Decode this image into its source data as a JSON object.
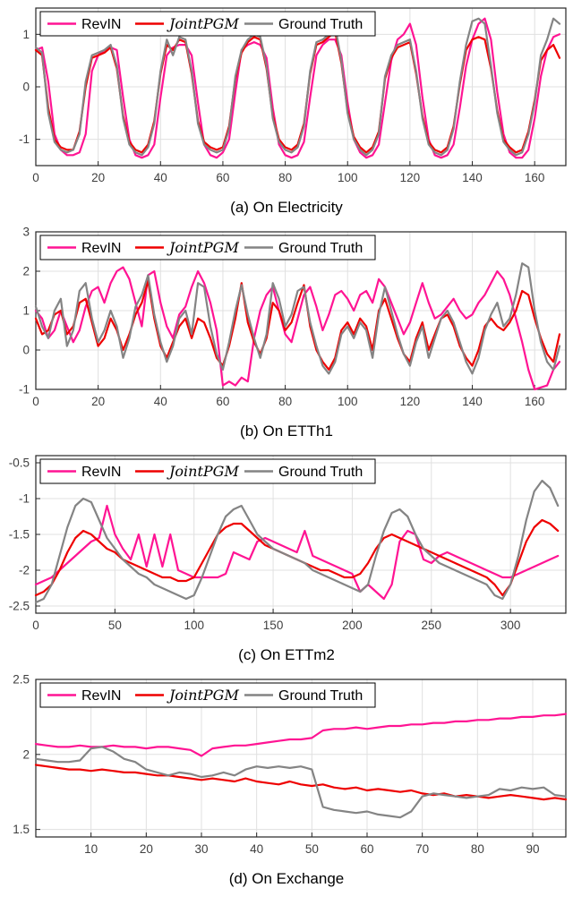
{
  "colors": {
    "revin": "#FF1493",
    "jointpgm": "#EE0000",
    "ground_truth": "#848484",
    "grid": "#E0E0E0",
    "axis": "#262626",
    "tick_label": "#3F3F3F",
    "legend_border": "#000000",
    "legend_bg": "#FFFFFF"
  },
  "chart_data": [
    {
      "id": "electricity",
      "caption": "(a) On Electricity",
      "type": "line",
      "xlim": [
        0,
        170
      ],
      "ylim": [
        -1.5,
        1.5
      ],
      "xticks": [
        0,
        20,
        40,
        60,
        80,
        100,
        120,
        140,
        160
      ],
      "yticks": [
        -1,
        0,
        1
      ],
      "x_start": 0,
      "x_step": 2,
      "legend_position": "top-left",
      "grid": true,
      "series": [
        {
          "name": "RevIN",
          "italic": false,
          "color_key": "revin",
          "values": [
            0.7,
            0.75,
            0.1,
            -0.9,
            -1.2,
            -1.3,
            -1.3,
            -1.25,
            -0.9,
            0.3,
            0.6,
            0.7,
            0.75,
            0.7,
            -0.2,
            -1.0,
            -1.3,
            -1.35,
            -1.3,
            -1.1,
            -0.2,
            0.6,
            0.75,
            0.8,
            0.8,
            0.6,
            -0.3,
            -1.1,
            -1.3,
            -1.35,
            -1.25,
            -1.0,
            -0.1,
            0.7,
            0.8,
            0.85,
            0.8,
            0.55,
            -0.4,
            -1.1,
            -1.3,
            -1.35,
            -1.3,
            -1.05,
            -0.2,
            0.6,
            0.8,
            0.9,
            0.9,
            0.6,
            -0.3,
            -1.0,
            -1.25,
            -1.35,
            -1.3,
            -1.1,
            -0.3,
            0.5,
            0.9,
            1.0,
            1.2,
            0.8,
            -0.2,
            -1.0,
            -1.3,
            -1.35,
            -1.3,
            -1.1,
            -0.4,
            0.4,
            0.9,
            1.2,
            1.3,
            0.9,
            -0.1,
            -0.9,
            -1.25,
            -1.35,
            -1.35,
            -1.2,
            -0.6,
            0.2,
            0.7,
            0.95,
            1.0
          ]
        },
        {
          "name": "JointPGM",
          "italic": true,
          "color_key": "jointpgm",
          "values": [
            0.7,
            0.6,
            -0.4,
            -1.0,
            -1.15,
            -1.2,
            -1.2,
            -0.85,
            0.0,
            0.55,
            0.6,
            0.65,
            0.75,
            0.35,
            -0.55,
            -1.05,
            -1.2,
            -1.25,
            -1.1,
            -0.65,
            0.25,
            0.8,
            0.7,
            0.9,
            0.85,
            0.25,
            -0.65,
            -1.05,
            -1.15,
            -1.2,
            -1.15,
            -0.75,
            0.15,
            0.65,
            0.85,
            0.95,
            0.9,
            0.35,
            -0.55,
            -1.0,
            -1.15,
            -1.2,
            -1.1,
            -0.7,
            0.25,
            0.8,
            0.85,
            0.95,
            1.05,
            0.45,
            -0.45,
            -0.95,
            -1.15,
            -1.25,
            -1.15,
            -0.85,
            0.15,
            0.55,
            0.75,
            0.8,
            0.85,
            0.25,
            -0.55,
            -1.05,
            -1.2,
            -1.25,
            -1.15,
            -0.75,
            0.05,
            0.7,
            0.9,
            0.95,
            0.9,
            0.35,
            -0.45,
            -1.0,
            -1.15,
            -1.25,
            -1.2,
            -0.85,
            -0.25,
            0.5,
            0.7,
            0.8,
            0.55
          ]
        },
        {
          "name": "Ground Truth",
          "italic": false,
          "color_key": "ground_truth",
          "values": [
            0.75,
            0.65,
            -0.5,
            -1.05,
            -1.2,
            -1.25,
            -1.2,
            -0.9,
            0.1,
            0.6,
            0.65,
            0.7,
            0.8,
            0.4,
            -0.6,
            -1.1,
            -1.25,
            -1.3,
            -1.15,
            -0.7,
            0.3,
            0.9,
            0.6,
            0.95,
            0.9,
            0.3,
            -0.7,
            -1.1,
            -1.2,
            -1.25,
            -1.2,
            -0.8,
            0.2,
            0.7,
            0.9,
            1.0,
            0.95,
            0.4,
            -0.6,
            -1.05,
            -1.2,
            -1.25,
            -1.15,
            -0.75,
            0.3,
            0.85,
            0.9,
            1.0,
            1.15,
            0.5,
            -0.5,
            -1.0,
            -1.2,
            -1.3,
            -1.2,
            -0.9,
            0.2,
            0.6,
            0.8,
            0.85,
            0.9,
            0.3,
            -0.6,
            -1.1,
            -1.25,
            -1.3,
            -1.2,
            -0.8,
            0.1,
            0.8,
            1.25,
            1.3,
            1.2,
            0.4,
            -0.5,
            -1.05,
            -1.2,
            -1.3,
            -1.25,
            -0.9,
            -0.3,
            0.6,
            0.9,
            1.3,
            1.2
          ]
        }
      ]
    },
    {
      "id": "etth1",
      "caption": "(b) On ETTh1",
      "type": "line",
      "xlim": [
        0,
        170
      ],
      "ylim": [
        -1,
        3
      ],
      "xticks": [
        0,
        20,
        40,
        60,
        80,
        100,
        120,
        140,
        160
      ],
      "yticks": [
        -1,
        0,
        1,
        2,
        3
      ],
      "x_start": 0,
      "x_step": 2,
      "legend_position": "top-left",
      "grid": true,
      "series": [
        {
          "name": "RevIN",
          "italic": false,
          "color_key": "revin",
          "values": [
            1.0,
            0.8,
            0.3,
            0.5,
            1.0,
            0.6,
            0.2,
            0.5,
            1.1,
            1.5,
            1.6,
            1.2,
            1.7,
            2.0,
            2.1,
            1.8,
            1.2,
            0.6,
            1.9,
            2.0,
            1.2,
            0.6,
            0.3,
            0.9,
            1.1,
            1.6,
            2.0,
            1.7,
            1.2,
            0.5,
            -0.9,
            -0.8,
            -0.9,
            -0.7,
            -0.8,
            0.3,
            1.0,
            1.4,
            1.6,
            1.0,
            0.4,
            0.2,
            0.8,
            1.4,
            1.6,
            1.1,
            0.5,
            0.9,
            1.4,
            1.5,
            1.3,
            1.0,
            1.4,
            1.5,
            1.2,
            1.8,
            1.6,
            1.2,
            0.8,
            0.4,
            0.7,
            1.2,
            1.7,
            1.2,
            0.8,
            0.9,
            1.1,
            1.3,
            1.0,
            0.8,
            0.9,
            1.2,
            1.4,
            1.7,
            2.0,
            1.8,
            1.4,
            0.8,
            0.2,
            -0.5,
            -1.0,
            -0.95,
            -0.9,
            -0.5,
            -0.3
          ]
        },
        {
          "name": "JointPGM",
          "italic": true,
          "color_key": "jointpgm",
          "values": [
            0.8,
            0.4,
            0.5,
            0.9,
            1.0,
            0.4,
            0.6,
            1.2,
            1.3,
            0.7,
            0.1,
            0.3,
            0.8,
            0.5,
            0.0,
            0.4,
            0.9,
            1.2,
            1.75,
            0.8,
            0.1,
            -0.2,
            0.2,
            0.6,
            0.8,
            0.3,
            0.8,
            0.7,
            0.3,
            -0.2,
            -0.4,
            0.1,
            0.8,
            1.7,
            0.7,
            0.2,
            -0.1,
            0.3,
            1.2,
            1.0,
            0.5,
            0.7,
            1.2,
            1.65,
            0.6,
            0.0,
            -0.3,
            -0.5,
            -0.2,
            0.5,
            0.7,
            0.4,
            0.8,
            0.6,
            0.0,
            1.0,
            1.3,
            0.8,
            0.3,
            -0.1,
            -0.3,
            0.3,
            0.7,
            0.0,
            0.4,
            0.8,
            0.9,
            0.6,
            0.1,
            -0.2,
            -0.4,
            0.0,
            0.6,
            0.8,
            0.6,
            0.5,
            0.7,
            1.0,
            1.5,
            1.4,
            0.8,
            0.3,
            -0.1,
            -0.3,
            0.4
          ]
        },
        {
          "name": "Ground Truth",
          "italic": false,
          "color_key": "ground_truth",
          "values": [
            1.1,
            0.6,
            0.3,
            1.0,
            1.3,
            0.1,
            0.5,
            1.5,
            1.7,
            0.8,
            0.2,
            0.5,
            1.0,
            0.6,
            -0.2,
            0.3,
            1.1,
            1.4,
            1.9,
            0.9,
            0.2,
            -0.3,
            0.1,
            0.8,
            1.0,
            0.4,
            1.7,
            1.6,
            0.6,
            -0.1,
            -0.5,
            0.2,
            1.0,
            1.65,
            0.9,
            0.3,
            -0.2,
            0.4,
            1.7,
            1.3,
            0.6,
            0.9,
            1.5,
            1.6,
            0.7,
            0.1,
            -0.4,
            -0.6,
            -0.3,
            0.4,
            0.6,
            0.3,
            0.7,
            0.5,
            -0.2,
            0.9,
            1.6,
            1.0,
            0.4,
            -0.1,
            -0.4,
            0.2,
            0.6,
            -0.2,
            0.3,
            0.8,
            1.0,
            0.7,
            0.2,
            -0.3,
            -0.6,
            -0.2,
            0.5,
            0.9,
            1.2,
            0.6,
            0.8,
            1.4,
            2.2,
            2.1,
            1.0,
            0.2,
            -0.3,
            -0.5,
            0.1
          ]
        }
      ]
    },
    {
      "id": "ettm2",
      "caption": "(c) On ETTm2",
      "type": "line",
      "xlim": [
        0,
        335
      ],
      "ylim": [
        -2.6,
        -0.4
      ],
      "xticks": [
        0,
        50,
        100,
        150,
        200,
        250,
        300
      ],
      "yticks": [
        -2.5,
        -2,
        -1.5,
        -1,
        -0.5
      ],
      "x_start": 0,
      "x_step": 5,
      "legend_position": "top-left",
      "grid": true,
      "series": [
        {
          "name": "RevIN",
          "italic": false,
          "color_key": "revin",
          "values": [
            -2.2,
            -2.15,
            -2.1,
            -2.0,
            -1.9,
            -1.8,
            -1.7,
            -1.6,
            -1.55,
            -1.1,
            -1.5,
            -1.7,
            -1.85,
            -1.5,
            -1.95,
            -1.5,
            -1.95,
            -1.5,
            -2.0,
            -2.05,
            -2.1,
            -2.1,
            -2.1,
            -2.1,
            -2.05,
            -1.75,
            -1.8,
            -1.85,
            -1.6,
            -1.55,
            -1.6,
            -1.65,
            -1.7,
            -1.75,
            -1.45,
            -1.8,
            -1.85,
            -1.9,
            -1.95,
            -2.0,
            -2.05,
            -2.3,
            -2.2,
            -2.3,
            -2.4,
            -2.2,
            -1.6,
            -1.45,
            -1.5,
            -1.85,
            -1.9,
            -1.8,
            -1.75,
            -1.8,
            -1.85,
            -1.9,
            -1.95,
            -2.0,
            -2.05,
            -2.1,
            -2.1,
            -2.05,
            -2.0,
            -1.95,
            -1.9,
            -1.85,
            -1.8
          ]
        },
        {
          "name": "JointPGM",
          "italic": true,
          "color_key": "jointpgm",
          "values": [
            -2.35,
            -2.3,
            -2.2,
            -2.0,
            -1.75,
            -1.55,
            -1.45,
            -1.5,
            -1.6,
            -1.7,
            -1.75,
            -1.85,
            -1.9,
            -1.95,
            -2.0,
            -2.05,
            -2.1,
            -2.1,
            -2.15,
            -2.15,
            -2.1,
            -1.9,
            -1.7,
            -1.5,
            -1.4,
            -1.35,
            -1.35,
            -1.45,
            -1.55,
            -1.65,
            -1.7,
            -1.75,
            -1.8,
            -1.85,
            -1.9,
            -1.95,
            -2.0,
            -2.0,
            -2.05,
            -2.1,
            -2.1,
            -2.05,
            -1.9,
            -1.7,
            -1.55,
            -1.5,
            -1.55,
            -1.6,
            -1.65,
            -1.7,
            -1.75,
            -1.8,
            -1.85,
            -1.9,
            -1.95,
            -2.0,
            -2.05,
            -2.1,
            -2.2,
            -2.35,
            -2.2,
            -1.9,
            -1.6,
            -1.4,
            -1.3,
            -1.35,
            -1.45
          ]
        },
        {
          "name": "Ground Truth",
          "italic": false,
          "color_key": "ground_truth",
          "values": [
            -2.45,
            -2.4,
            -2.2,
            -1.8,
            -1.4,
            -1.1,
            -1.0,
            -1.05,
            -1.3,
            -1.55,
            -1.7,
            -1.85,
            -1.95,
            -2.05,
            -2.1,
            -2.2,
            -2.25,
            -2.3,
            -2.35,
            -2.4,
            -2.35,
            -2.1,
            -1.8,
            -1.5,
            -1.25,
            -1.15,
            -1.1,
            -1.3,
            -1.5,
            -1.6,
            -1.7,
            -1.75,
            -1.8,
            -1.85,
            -1.9,
            -2.0,
            -2.05,
            -2.1,
            -2.15,
            -2.2,
            -2.25,
            -2.3,
            -2.2,
            -1.8,
            -1.45,
            -1.2,
            -1.15,
            -1.25,
            -1.5,
            -1.7,
            -1.8,
            -1.9,
            -1.95,
            -2.0,
            -2.05,
            -2.1,
            -2.15,
            -2.2,
            -2.35,
            -2.4,
            -2.2,
            -1.8,
            -1.3,
            -0.9,
            -0.75,
            -0.85,
            -1.1
          ]
        }
      ]
    },
    {
      "id": "exchange",
      "caption": "(d) On Exchange",
      "type": "line",
      "xlim": [
        0,
        96
      ],
      "ylim": [
        1.45,
        2.5
      ],
      "xticks": [
        10,
        20,
        30,
        40,
        50,
        60,
        70,
        80,
        90
      ],
      "yticks": [
        1.5,
        2,
        2.5
      ],
      "x_start": 0,
      "x_step": 2,
      "legend_position": "top-left",
      "grid": true,
      "series": [
        {
          "name": "RevIN",
          "italic": false,
          "color_key": "revin",
          "values": [
            2.07,
            2.06,
            2.05,
            2.05,
            2.06,
            2.05,
            2.05,
            2.06,
            2.05,
            2.05,
            2.04,
            2.05,
            2.05,
            2.04,
            2.03,
            1.99,
            2.04,
            2.05,
            2.06,
            2.06,
            2.07,
            2.08,
            2.09,
            2.1,
            2.1,
            2.11,
            2.16,
            2.17,
            2.17,
            2.18,
            2.17,
            2.18,
            2.19,
            2.19,
            2.2,
            2.2,
            2.21,
            2.21,
            2.22,
            2.22,
            2.23,
            2.23,
            2.24,
            2.24,
            2.25,
            2.25,
            2.26,
            2.26,
            2.27
          ]
        },
        {
          "name": "JointPGM",
          "italic": true,
          "color_key": "jointpgm",
          "values": [
            1.93,
            1.92,
            1.91,
            1.9,
            1.9,
            1.89,
            1.9,
            1.89,
            1.88,
            1.88,
            1.87,
            1.86,
            1.86,
            1.85,
            1.84,
            1.83,
            1.84,
            1.83,
            1.82,
            1.84,
            1.82,
            1.81,
            1.8,
            1.82,
            1.8,
            1.79,
            1.8,
            1.78,
            1.77,
            1.78,
            1.76,
            1.77,
            1.76,
            1.75,
            1.76,
            1.74,
            1.73,
            1.74,
            1.72,
            1.73,
            1.72,
            1.71,
            1.72,
            1.73,
            1.72,
            1.71,
            1.7,
            1.71,
            1.7
          ]
        },
        {
          "name": "Ground Truth",
          "italic": false,
          "color_key": "ground_truth",
          "values": [
            1.97,
            1.96,
            1.95,
            1.95,
            1.96,
            2.04,
            2.05,
            2.02,
            1.97,
            1.95,
            1.9,
            1.88,
            1.86,
            1.88,
            1.87,
            1.85,
            1.86,
            1.88,
            1.86,
            1.9,
            1.92,
            1.91,
            1.92,
            1.91,
            1.92,
            1.9,
            1.65,
            1.63,
            1.62,
            1.61,
            1.62,
            1.6,
            1.59,
            1.58,
            1.62,
            1.72,
            1.74,
            1.73,
            1.72,
            1.71,
            1.72,
            1.73,
            1.77,
            1.76,
            1.78,
            1.77,
            1.78,
            1.73,
            1.72
          ]
        }
      ]
    }
  ]
}
